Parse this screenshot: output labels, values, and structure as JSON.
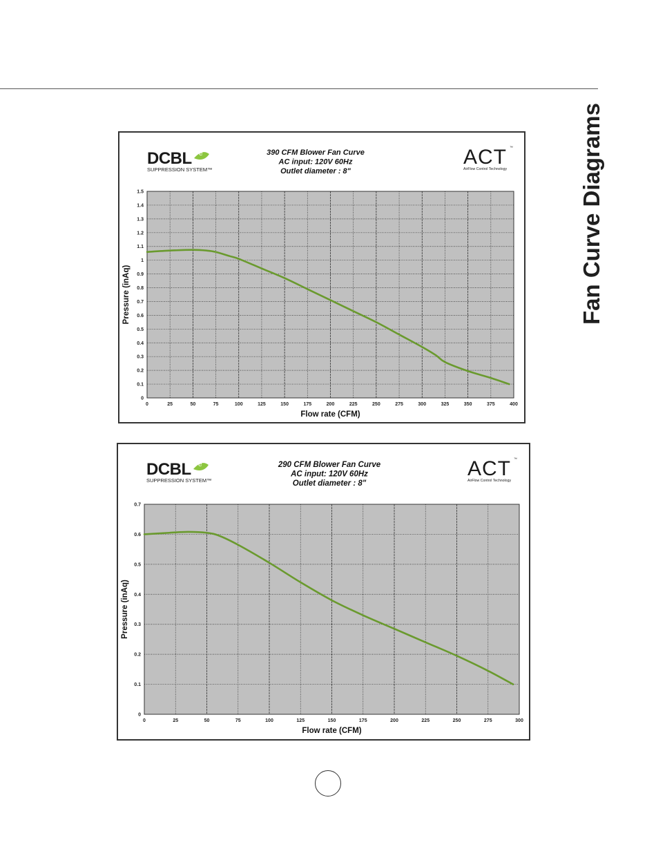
{
  "page": {
    "side_title": "Fan Curve Diagrams",
    "page_number": ""
  },
  "logos": {
    "dcbl_text": "DCBL",
    "dcbl_sup": "e",
    "dcbl_sub": "SUPPRESSION SYSTEM™",
    "act_text": "ACT",
    "act_tm": "™",
    "act_sub": "AirFlow Control Technology"
  },
  "colors": {
    "curve": "#6a9a2e",
    "plot_bg": "#c0c0c0",
    "leaf": "#8cc63f"
  },
  "chart_data": [
    {
      "type": "line",
      "title_lines": [
        "390 CFM Blower Fan Curve",
        "AC input: 120V  60Hz",
        "Outlet diameter : 8\""
      ],
      "xlabel": "Flow rate (CFM)",
      "ylabel": "Pressure (inAq)",
      "xlim": [
        0,
        400
      ],
      "ylim": [
        0,
        1.5
      ],
      "xticks": [
        0,
        25,
        50,
        75,
        100,
        125,
        150,
        175,
        200,
        225,
        250,
        275,
        300,
        325,
        350,
        375,
        400
      ],
      "yticks": [
        0,
        0.1,
        0.2,
        0.3,
        0.4,
        0.5,
        0.6,
        0.7,
        0.8,
        0.9,
        1,
        1.1,
        1.2,
        1.3,
        1.4,
        1.5
      ],
      "grid": true,
      "series": [
        {
          "x": [
            0,
            25,
            50,
            65,
            75,
            90,
            100,
            125,
            150,
            175,
            200,
            225,
            250,
            275,
            300,
            315,
            325,
            350,
            375,
            395
          ],
          "y": [
            1.06,
            1.07,
            1.075,
            1.07,
            1.06,
            1.03,
            1.01,
            0.94,
            0.87,
            0.79,
            0.71,
            0.63,
            0.55,
            0.46,
            0.37,
            0.31,
            0.26,
            0.195,
            0.145,
            0.1
          ]
        }
      ]
    },
    {
      "type": "line",
      "title_lines": [
        "290 CFM Blower Fan Curve",
        "AC input: 120V  60Hz",
        "Outlet diameter : 8\""
      ],
      "xlabel": "Flow rate (CFM)",
      "ylabel": "Pressure (inAq)",
      "xlim": [
        0,
        300
      ],
      "ylim": [
        0,
        0.7
      ],
      "xticks": [
        0,
        25,
        50,
        75,
        100,
        125,
        150,
        175,
        200,
        225,
        250,
        275,
        300
      ],
      "yticks": [
        0,
        0.1,
        0.2,
        0.3,
        0.4,
        0.5,
        0.6,
        0.7
      ],
      "grid": true,
      "series": [
        {
          "x": [
            0,
            20,
            35,
            50,
            60,
            75,
            100,
            125,
            150,
            175,
            200,
            225,
            250,
            275,
            295
          ],
          "y": [
            0.6,
            0.605,
            0.608,
            0.605,
            0.595,
            0.565,
            0.505,
            0.44,
            0.38,
            0.33,
            0.285,
            0.24,
            0.195,
            0.145,
            0.1
          ]
        }
      ]
    }
  ]
}
